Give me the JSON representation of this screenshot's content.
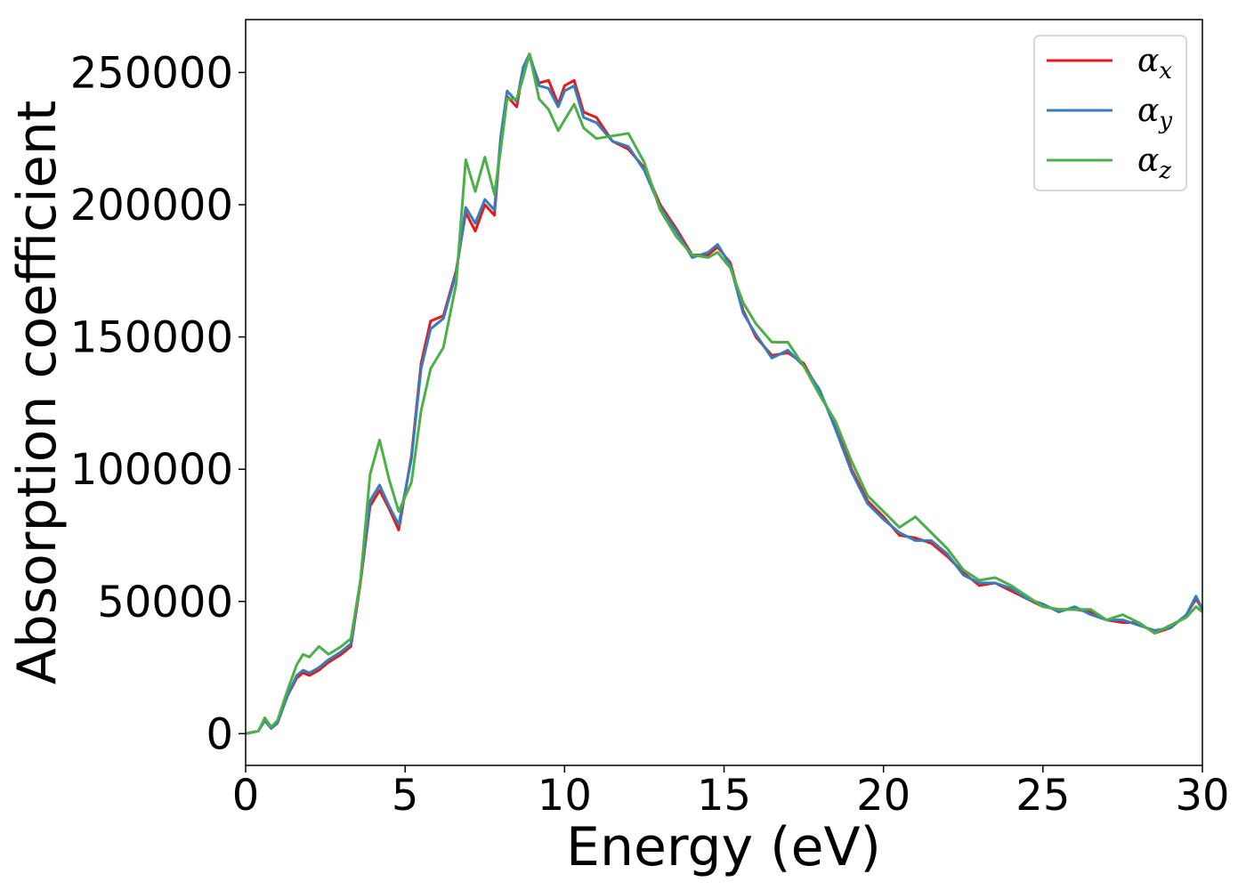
{
  "chart_data": {
    "type": "line",
    "title": "",
    "xlabel": "Energy (eV)",
    "ylabel": "Absorption coefficient",
    "xlim": [
      0,
      30
    ],
    "ylim": [
      -12000,
      270000
    ],
    "xticks": [
      0,
      5,
      10,
      15,
      20,
      25,
      30
    ],
    "xtick_labels": [
      "0",
      "5",
      "10",
      "15",
      "20",
      "25",
      "30"
    ],
    "yticks": [
      0,
      50000,
      100000,
      150000,
      200000,
      250000
    ],
    "ytick_labels": [
      "0",
      "50000",
      "100000",
      "150000",
      "200000",
      "250000"
    ],
    "grid": false,
    "legend_position": "top-right",
    "series": [
      {
        "name": "αx",
        "symbol": "α",
        "subscript": "x",
        "color": "#e41a1c",
        "x": [
          0,
          0.4,
          0.6,
          0.8,
          1.0,
          1.3,
          1.6,
          1.8,
          2.0,
          2.3,
          2.6,
          3.0,
          3.3,
          3.6,
          3.9,
          4.2,
          4.5,
          4.8,
          5.2,
          5.5,
          5.8,
          6.2,
          6.6,
          6.9,
          7.2,
          7.5,
          7.8,
          8.0,
          8.2,
          8.5,
          8.7,
          8.9,
          9.2,
          9.5,
          9.8,
          10.0,
          10.3,
          10.6,
          11.0,
          11.5,
          12.0,
          12.5,
          13.0,
          13.5,
          14.0,
          14.5,
          14.8,
          15.2,
          15.6,
          16.0,
          16.5,
          17.0,
          17.5,
          18.0,
          18.5,
          19.0,
          19.5,
          20.0,
          20.5,
          21.0,
          21.5,
          22.0,
          22.5,
          23.0,
          23.5,
          24.0,
          24.5,
          25.0,
          25.5,
          26.0,
          26.5,
          27.0,
          27.5,
          28.0,
          28.5,
          29.0,
          29.5,
          29.8,
          30.0
        ],
        "y": [
          0,
          1000,
          5000,
          2000,
          4000,
          14000,
          21000,
          23000,
          22000,
          24000,
          27000,
          30000,
          33000,
          57000,
          86000,
          92000,
          85000,
          77000,
          105000,
          140000,
          156000,
          158000,
          175000,
          197000,
          190000,
          200000,
          196000,
          225000,
          241000,
          237000,
          251000,
          256000,
          246000,
          247000,
          238000,
          245000,
          247000,
          235000,
          233000,
          224000,
          221000,
          214000,
          200000,
          191000,
          181000,
          181000,
          184000,
          178000,
          160000,
          150000,
          143000,
          144000,
          140000,
          129000,
          117000,
          100000,
          88000,
          82000,
          75000,
          74000,
          72000,
          67000,
          61000,
          56000,
          57000,
          54000,
          51000,
          48000,
          47000,
          47000,
          46000,
          43000,
          42000,
          42000,
          38000,
          40000,
          45000,
          51000,
          47000
        ]
      },
      {
        "name": "αy",
        "symbol": "α",
        "subscript": "y",
        "color": "#377eb8",
        "x": [
          0,
          0.4,
          0.6,
          0.8,
          1.0,
          1.3,
          1.6,
          1.8,
          2.0,
          2.3,
          2.6,
          3.0,
          3.3,
          3.6,
          3.9,
          4.2,
          4.5,
          4.8,
          5.2,
          5.5,
          5.8,
          6.2,
          6.6,
          6.9,
          7.2,
          7.5,
          7.8,
          8.0,
          8.2,
          8.5,
          8.7,
          8.9,
          9.2,
          9.5,
          9.8,
          10.0,
          10.3,
          10.6,
          11.0,
          11.5,
          12.0,
          12.5,
          13.0,
          13.5,
          14.0,
          14.5,
          14.8,
          15.2,
          15.6,
          16.0,
          16.5,
          17.0,
          17.5,
          18.0,
          18.5,
          19.0,
          19.5,
          20.0,
          20.5,
          21.0,
          21.5,
          22.0,
          22.5,
          23.0,
          23.5,
          24.0,
          24.5,
          25.0,
          25.5,
          26.0,
          26.5,
          27.0,
          27.5,
          28.0,
          28.5,
          29.0,
          29.5,
          29.8,
          30.0
        ],
        "y": [
          0,
          1000,
          5000,
          2000,
          4000,
          14000,
          22000,
          24000,
          23000,
          25000,
          28000,
          31000,
          34000,
          58000,
          88000,
          94000,
          86000,
          79000,
          104000,
          138000,
          153000,
          157000,
          174000,
          199000,
          193000,
          202000,
          198000,
          226000,
          243000,
          239000,
          252000,
          257000,
          245000,
          244000,
          237000,
          243000,
          245000,
          233000,
          231000,
          224000,
          222000,
          213000,
          199000,
          190000,
          180000,
          182000,
          185000,
          177000,
          159000,
          151000,
          142000,
          145000,
          139000,
          130000,
          115000,
          99000,
          87000,
          81000,
          76000,
          73000,
          73000,
          68000,
          60000,
          57000,
          57000,
          55000,
          51000,
          49000,
          46000,
          48000,
          45000,
          43000,
          43000,
          41000,
          39000,
          40000,
          45000,
          52000,
          47000
        ]
      },
      {
        "name": "αz",
        "symbol": "α",
        "subscript": "z",
        "color": "#4daf4a",
        "x": [
          0,
          0.4,
          0.6,
          0.8,
          1.0,
          1.3,
          1.6,
          1.8,
          2.0,
          2.3,
          2.6,
          3.0,
          3.3,
          3.6,
          3.9,
          4.2,
          4.5,
          4.8,
          5.2,
          5.5,
          5.8,
          6.2,
          6.6,
          6.9,
          7.2,
          7.5,
          7.8,
          8.0,
          8.2,
          8.5,
          8.7,
          8.9,
          9.2,
          9.5,
          9.8,
          10.0,
          10.3,
          10.6,
          11.0,
          11.5,
          12.0,
          12.5,
          13.0,
          13.5,
          14.0,
          14.5,
          14.8,
          15.2,
          15.6,
          16.0,
          16.5,
          17.0,
          17.5,
          18.0,
          18.5,
          19.0,
          19.5,
          20.0,
          20.5,
          21.0,
          21.5,
          22.0,
          22.5,
          23.0,
          23.5,
          24.0,
          24.5,
          25.0,
          25.5,
          26.0,
          26.5,
          27.0,
          27.5,
          28.0,
          28.5,
          29.0,
          29.5,
          29.8,
          30.0
        ],
        "y": [
          0,
          1000,
          6000,
          2500,
          5000,
          16000,
          26000,
          30000,
          29000,
          33000,
          30000,
          33000,
          36000,
          58000,
          98000,
          111000,
          96000,
          84000,
          95000,
          122000,
          138000,
          146000,
          170000,
          217000,
          205000,
          218000,
          204000,
          221000,
          240000,
          240000,
          248000,
          257000,
          240000,
          236000,
          228000,
          232000,
          238000,
          229000,
          225000,
          226000,
          227000,
          216000,
          198000,
          188000,
          181000,
          180000,
          182000,
          176000,
          163000,
          155000,
          148000,
          148000,
          139000,
          128000,
          118000,
          103000,
          90000,
          84000,
          78000,
          82000,
          76000,
          70000,
          62000,
          58000,
          59000,
          56000,
          52000,
          48000,
          47000,
          47000,
          47000,
          43000,
          45000,
          42000,
          38000,
          41000,
          44000,
          48000,
          46000
        ]
      }
    ]
  }
}
